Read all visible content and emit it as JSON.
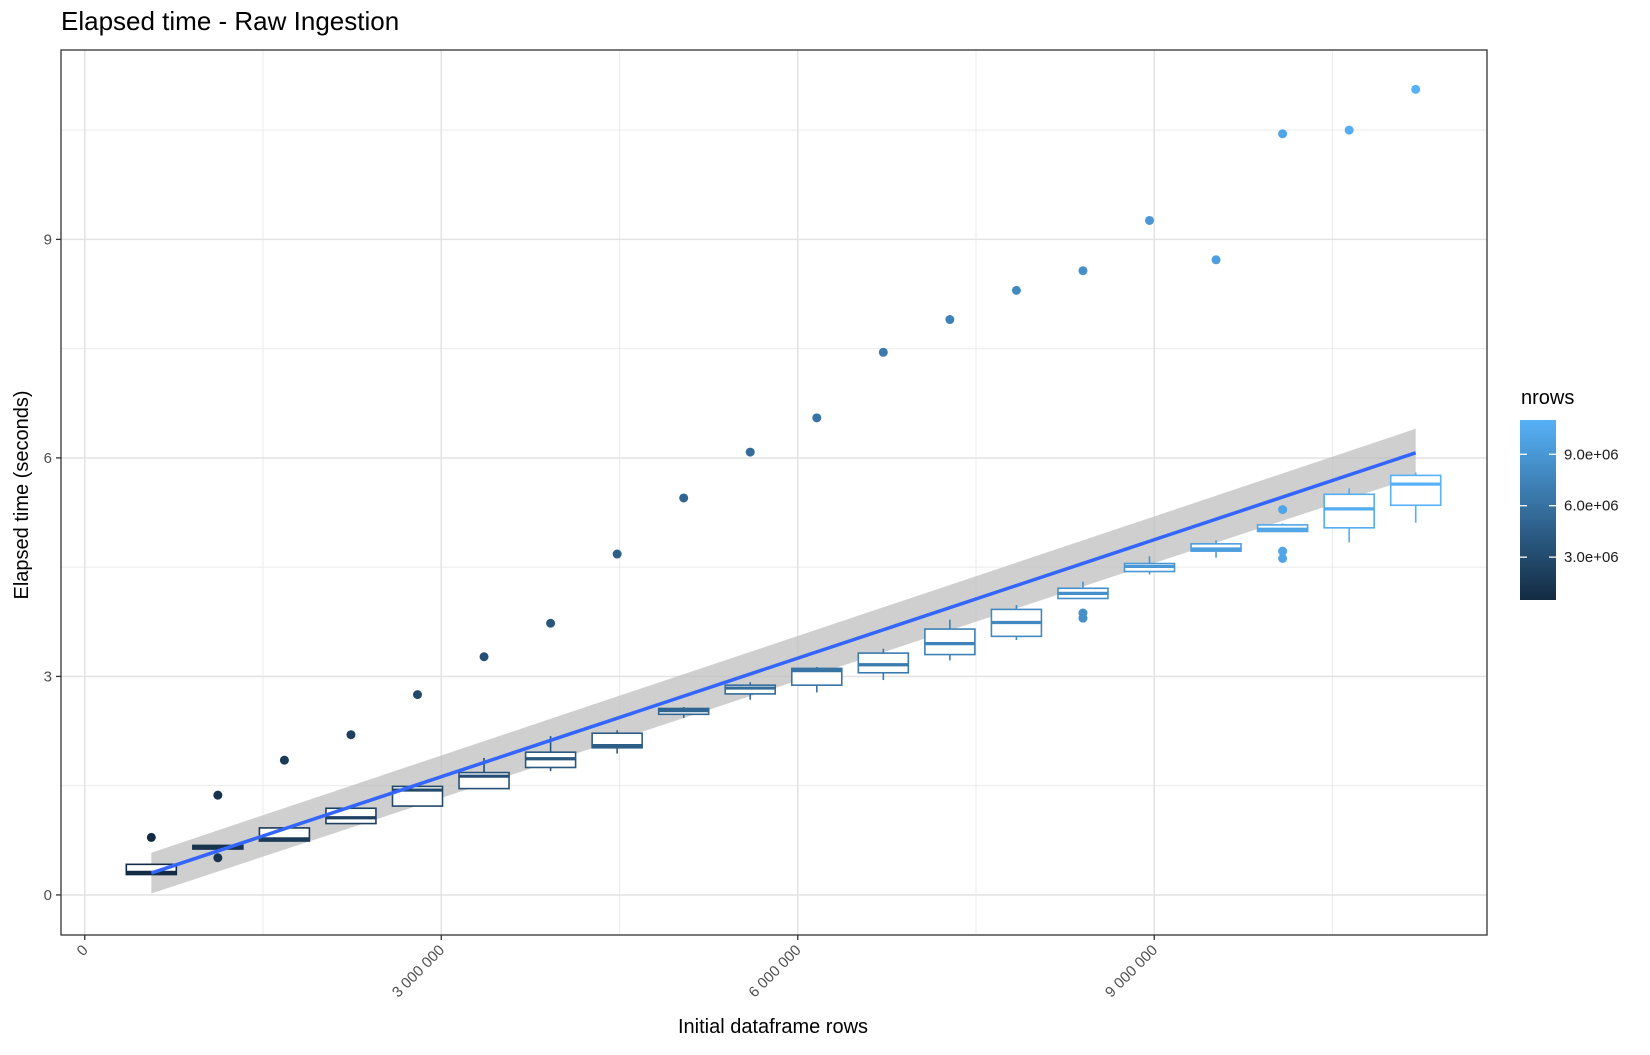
{
  "chart_data": {
    "type": "box",
    "title": "Elapsed time - Raw Ingestion",
    "xlabel": "Initial dataframe rows",
    "ylabel": "Elapsed time (seconds)",
    "xlim": [
      -200000,
      11800000
    ],
    "ylim": [
      -0.55,
      11.6
    ],
    "x_ticks": [
      0,
      3000000,
      6000000,
      9000000
    ],
    "x_tick_labels": [
      "0",
      "3 000 000",
      "6 000 000",
      "9 000 000"
    ],
    "y_ticks": [
      0,
      3,
      6,
      9
    ],
    "y_tick_labels": [
      "0",
      "3",
      "6",
      "9"
    ],
    "grid": true,
    "legend": {
      "title": "nrows",
      "placement": "right",
      "range": [
        500000,
        11000000
      ],
      "breaks": [
        3000000,
        6000000,
        9000000
      ],
      "labels": [
        "3.0e+06",
        "6.0e+06",
        "9.0e+06"
      ],
      "low_color": "#132B43",
      "high_color": "#56B1F7"
    },
    "boxes": [
      {
        "x": 560000,
        "ymin": 0.28,
        "q1": 0.28,
        "median": 0.31,
        "q3": 0.42,
        "ymax": 0.42,
        "outliers": [
          0.79
        ]
      },
      {
        "x": 1120000,
        "ymin": 0.63,
        "q1": 0.63,
        "median": 0.66,
        "q3": 0.68,
        "ymax": 0.68,
        "outliers": [
          1.37,
          0.51
        ]
      },
      {
        "x": 1680000,
        "ymin": 0.74,
        "q1": 0.74,
        "median": 0.77,
        "q3": 0.92,
        "ymax": 0.92,
        "outliers": [
          1.85
        ]
      },
      {
        "x": 2240000,
        "ymin": 0.98,
        "q1": 0.98,
        "median": 1.06,
        "q3": 1.19,
        "ymax": 1.22,
        "outliers": [
          2.2
        ]
      },
      {
        "x": 2800000,
        "ymin": 1.22,
        "q1": 1.22,
        "median": 1.44,
        "q3": 1.49,
        "ymax": 1.52,
        "outliers": [
          2.75
        ]
      },
      {
        "x": 3360000,
        "ymin": 1.46,
        "q1": 1.46,
        "median": 1.63,
        "q3": 1.68,
        "ymax": 1.88,
        "outliers": [
          3.27
        ]
      },
      {
        "x": 3920000,
        "ymin": 1.7,
        "q1": 1.75,
        "median": 1.87,
        "q3": 1.96,
        "ymax": 2.18,
        "outliers": [
          3.73
        ]
      },
      {
        "x": 4480000,
        "ymin": 1.94,
        "q1": 2.02,
        "median": 2.05,
        "q3": 2.22,
        "ymax": 2.26,
        "outliers": [
          4.68
        ]
      },
      {
        "x": 5040000,
        "ymin": 2.43,
        "q1": 2.48,
        "median": 2.53,
        "q3": 2.56,
        "ymax": 2.58,
        "outliers": [
          5.45
        ]
      },
      {
        "x": 5600000,
        "ymin": 2.68,
        "q1": 2.76,
        "median": 2.84,
        "q3": 2.88,
        "ymax": 2.92,
        "outliers": [
          6.08
        ]
      },
      {
        "x": 6160000,
        "ymin": 2.78,
        "q1": 2.88,
        "median": 3.08,
        "q3": 3.11,
        "ymax": 3.13,
        "outliers": [
          6.55
        ]
      },
      {
        "x": 6720000,
        "ymin": 2.95,
        "q1": 3.05,
        "median": 3.16,
        "q3": 3.32,
        "ymax": 3.38,
        "outliers": [
          7.45
        ]
      },
      {
        "x": 7280000,
        "ymin": 3.22,
        "q1": 3.3,
        "median": 3.45,
        "q3": 3.65,
        "ymax": 3.78,
        "outliers": [
          7.9
        ]
      },
      {
        "x": 7840000,
        "ymin": 3.5,
        "q1": 3.55,
        "median": 3.74,
        "q3": 3.92,
        "ymax": 3.98,
        "outliers": [
          8.3
        ]
      },
      {
        "x": 8400000,
        "ymin": 4.07,
        "q1": 4.07,
        "median": 4.14,
        "q3": 4.21,
        "ymax": 4.3,
        "outliers": [
          8.57,
          3.87,
          3.8
        ]
      },
      {
        "x": 8960000,
        "ymin": 4.4,
        "q1": 4.44,
        "median": 4.51,
        "q3": 4.55,
        "ymax": 4.65,
        "outliers": [
          9.26
        ]
      },
      {
        "x": 9520000,
        "ymin": 4.63,
        "q1": 4.72,
        "median": 4.75,
        "q3": 4.82,
        "ymax": 4.87,
        "outliers": [
          8.72
        ]
      },
      {
        "x": 10080000,
        "ymin": 4.99,
        "q1": 4.99,
        "median": 5.02,
        "q3": 5.08,
        "ymax": 5.1,
        "outliers": [
          10.45,
          5.29,
          4.72,
          4.62
        ]
      },
      {
        "x": 10640000,
        "ymin": 4.84,
        "q1": 5.04,
        "median": 5.3,
        "q3": 5.5,
        "ymax": 5.58,
        "outliers": [
          10.5
        ]
      },
      {
        "x": 11200000,
        "ymin": 5.11,
        "q1": 5.35,
        "median": 5.64,
        "q3": 5.76,
        "ymax": 5.8,
        "outliers": [
          11.06
        ]
      }
    ],
    "trend": {
      "x": [
        560000,
        11200000
      ],
      "y": [
        0.3,
        6.07
      ],
      "color": "#3366FF",
      "band_color": "#BFBFBF",
      "se_low": 0.28,
      "se_high": 0.33
    }
  }
}
